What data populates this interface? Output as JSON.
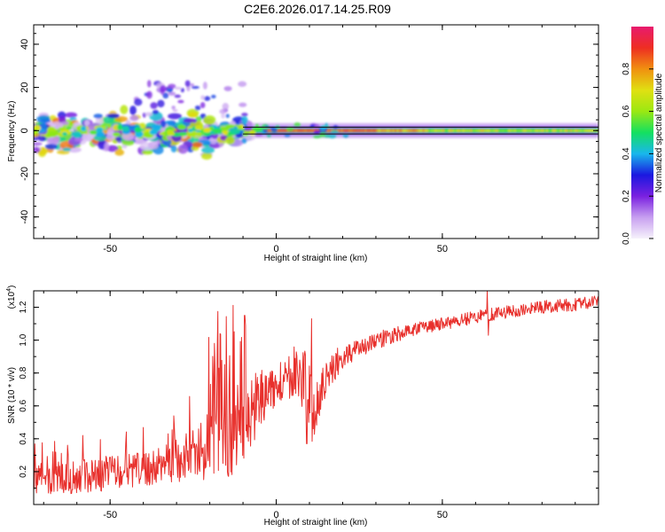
{
  "figure_title": "C2E6.2026.017.14.25.R09",
  "chart_data": [
    {
      "type": "heatmap",
      "title": "C2E6.2026.017.14.25.R09",
      "xlabel": "Height of straight line (km)",
      "ylabel": "Frequency (Hz)",
      "xlim": [
        -73,
        97
      ],
      "ylim": [
        -50,
        49
      ],
      "xticks": [
        -50,
        0,
        50
      ],
      "yticks": [
        -40,
        -20,
        0,
        20,
        40
      ],
      "colorbar": {
        "label": "Normalized spectral amplitude",
        "range": [
          0,
          1
        ],
        "ticks": [
          0.0,
          0.2,
          0.4,
          0.6,
          0.8
        ],
        "tick_labels": [
          "0.0",
          "0.2",
          "0.4",
          "0.6",
          "0.8"
        ],
        "colors": [
          "#f6f2fb",
          "#c79ff0",
          "#7a20e0",
          "#1a18e0",
          "#19b7ec",
          "#14e060",
          "#9be812",
          "#e0e012",
          "#f09010",
          "#ee2e22",
          "#e81a6e"
        ]
      },
      "main_band": {
        "frequency_hz": 0,
        "x_start": -10,
        "x_end": 97
      }
    },
    {
      "type": "line",
      "title": "",
      "xlabel": "Height of straight line (km)",
      "ylabel": "SNR (10 * v/v)",
      "y_scale_label": "(x10",
      "y_scale_exponent": "4",
      "y_scale_suffix": ")",
      "xlim": [
        -73,
        97
      ],
      "ylim": [
        0,
        1.3
      ],
      "xticks": [
        -50,
        0,
        50
      ],
      "yticks": [
        0.2,
        0.4,
        0.6,
        0.8,
        1.0,
        1.2
      ],
      "ytick_labels": [
        "0.2",
        "0.4",
        "0.6",
        "0.8",
        "1.0",
        "1.2"
      ],
      "series": [
        {
          "name": "SNR",
          "color": "#e8302c",
          "trend": [
            [
              -73,
              0.16
            ],
            [
              -60,
              0.17
            ],
            [
              -50,
              0.19
            ],
            [
              -40,
              0.21
            ],
            [
              -30,
              0.27
            ],
            [
              -20,
              0.36
            ],
            [
              -14,
              0.44
            ],
            [
              -10,
              0.5
            ],
            [
              -7,
              0.57
            ],
            [
              -5,
              0.65
            ],
            [
              0,
              0.73
            ],
            [
              5,
              0.8
            ],
            [
              9,
              0.75
            ],
            [
              11,
              0.55
            ],
            [
              14,
              0.72
            ],
            [
              18,
              0.86
            ],
            [
              25,
              0.96
            ],
            [
              35,
              1.03
            ],
            [
              45,
              1.08
            ],
            [
              55,
              1.12
            ],
            [
              65,
              1.16
            ],
            [
              75,
              1.19
            ],
            [
              85,
              1.21
            ],
            [
              97,
              1.23
            ]
          ],
          "noise_amplitude": [
            [
              -73,
              0.1
            ],
            [
              -40,
              0.11
            ],
            [
              -25,
              0.15
            ],
            [
              -15,
              0.3
            ],
            [
              -8,
              0.22
            ],
            [
              0,
              0.12
            ],
            [
              10,
              0.2
            ],
            [
              20,
              0.07
            ],
            [
              40,
              0.04
            ],
            [
              97,
              0.04
            ]
          ],
          "features": [
            {
              "x": -9.5,
              "y": 1.15,
              "x_low": -8.7,
              "y_low": 0.41
            },
            {
              "x": 10.7,
              "y": 1.13,
              "x_low": 9.2,
              "y_low": 0.37
            },
            {
              "x": 63.5,
              "y": 1.3,
              "x_low": 63.9,
              "y_low": 1.03
            }
          ]
        }
      ]
    }
  ]
}
